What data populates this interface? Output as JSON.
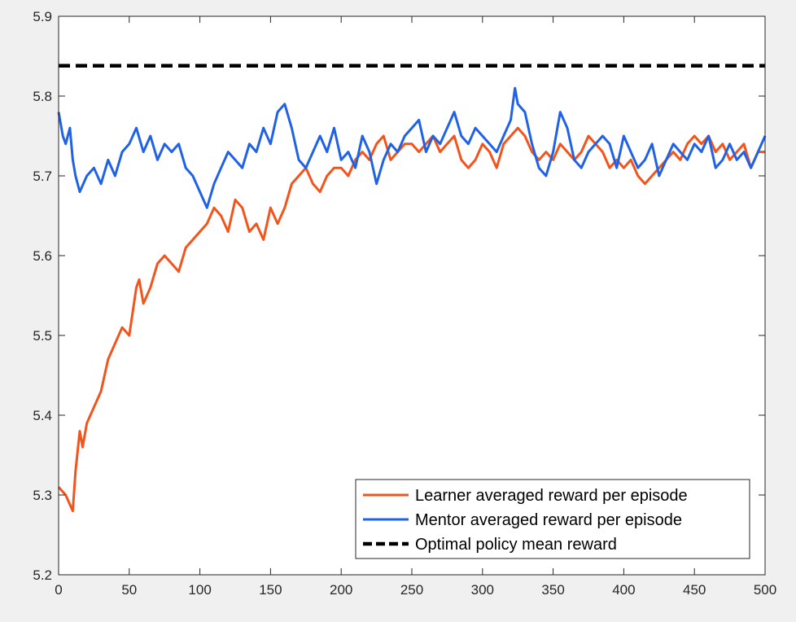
{
  "chart_data": {
    "type": "line",
    "title": "",
    "xlabel": "",
    "ylabel": "",
    "xlim": [
      0,
      500
    ],
    "ylim": [
      5.2,
      5.9
    ],
    "xticks": [
      0,
      50,
      100,
      150,
      200,
      250,
      300,
      350,
      400,
      450,
      500
    ],
    "xtick_labels": [
      "0",
      "50",
      "100",
      "150",
      "200",
      "250",
      "300",
      "350",
      "400",
      "450",
      "500"
    ],
    "yticks": [
      5.2,
      5.3,
      5.4,
      5.5,
      5.6,
      5.7,
      5.8,
      5.9
    ],
    "ytick_labels": [
      "5.2",
      "5.3",
      "5.4",
      "5.5",
      "5.6",
      "5.7",
      "5.8",
      "5.9"
    ],
    "grid": false,
    "legend_position": "bottom-right",
    "series": [
      {
        "name": "Learner averaged reward per episode",
        "color": "#f2541c",
        "dash": "solid",
        "x": [
          0,
          5,
          10,
          12,
          15,
          17,
          20,
          25,
          30,
          35,
          40,
          45,
          50,
          55,
          57,
          60,
          65,
          70,
          75,
          80,
          85,
          90,
          95,
          100,
          105,
          110,
          115,
          120,
          125,
          130,
          135,
          140,
          145,
          150,
          155,
          160,
          165,
          170,
          175,
          180,
          185,
          190,
          195,
          200,
          205,
          210,
          215,
          220,
          225,
          230,
          235,
          240,
          245,
          250,
          255,
          260,
          265,
          270,
          275,
          280,
          285,
          290,
          295,
          300,
          305,
          310,
          315,
          320,
          325,
          330,
          335,
          340,
          345,
          350,
          355,
          360,
          365,
          370,
          375,
          380,
          385,
          390,
          395,
          400,
          405,
          410,
          415,
          420,
          425,
          430,
          435,
          440,
          445,
          450,
          455,
          460,
          465,
          470,
          475,
          480,
          485,
          490,
          495,
          500
        ],
        "y": [
          5.31,
          5.3,
          5.28,
          5.33,
          5.38,
          5.36,
          5.39,
          5.41,
          5.43,
          5.47,
          5.49,
          5.51,
          5.5,
          5.56,
          5.57,
          5.54,
          5.56,
          5.59,
          5.6,
          5.59,
          5.58,
          5.61,
          5.62,
          5.63,
          5.64,
          5.66,
          5.65,
          5.63,
          5.67,
          5.66,
          5.63,
          5.64,
          5.62,
          5.66,
          5.64,
          5.66,
          5.69,
          5.7,
          5.71,
          5.69,
          5.68,
          5.7,
          5.71,
          5.71,
          5.7,
          5.72,
          5.73,
          5.72,
          5.74,
          5.75,
          5.72,
          5.73,
          5.74,
          5.74,
          5.73,
          5.74,
          5.75,
          5.73,
          5.74,
          5.75,
          5.72,
          5.71,
          5.72,
          5.74,
          5.73,
          5.71,
          5.74,
          5.75,
          5.76,
          5.75,
          5.73,
          5.72,
          5.73,
          5.72,
          5.74,
          5.73,
          5.72,
          5.73,
          5.75,
          5.74,
          5.73,
          5.71,
          5.72,
          5.71,
          5.72,
          5.7,
          5.69,
          5.7,
          5.71,
          5.72,
          5.73,
          5.72,
          5.74,
          5.75,
          5.74,
          5.75,
          5.73,
          5.74,
          5.72,
          5.73,
          5.74,
          5.71,
          5.73,
          5.73
        ]
      },
      {
        "name": "Mentor averaged reward per episode",
        "color": "#1f62e6",
        "dash": "solid",
        "x": [
          0,
          3,
          5,
          8,
          10,
          12,
          15,
          20,
          25,
          30,
          35,
          40,
          45,
          50,
          55,
          60,
          65,
          70,
          75,
          80,
          85,
          90,
          95,
          100,
          105,
          110,
          115,
          120,
          125,
          130,
          135,
          140,
          145,
          150,
          155,
          160,
          165,
          170,
          175,
          180,
          185,
          190,
          195,
          200,
          205,
          210,
          215,
          220,
          225,
          230,
          235,
          240,
          245,
          250,
          255,
          260,
          265,
          270,
          275,
          280,
          285,
          290,
          295,
          300,
          305,
          310,
          315,
          320,
          323,
          325,
          330,
          335,
          340,
          345,
          350,
          355,
          360,
          365,
          370,
          375,
          380,
          385,
          390,
          395,
          400,
          405,
          410,
          415,
          420,
          425,
          430,
          435,
          440,
          445,
          450,
          455,
          460,
          465,
          470,
          475,
          480,
          485,
          490,
          495,
          500
        ],
        "y": [
          5.78,
          5.75,
          5.74,
          5.76,
          5.72,
          5.7,
          5.68,
          5.7,
          5.71,
          5.69,
          5.72,
          5.7,
          5.73,
          5.74,
          5.76,
          5.73,
          5.75,
          5.72,
          5.74,
          5.73,
          5.74,
          5.71,
          5.7,
          5.68,
          5.66,
          5.69,
          5.71,
          5.73,
          5.72,
          5.71,
          5.74,
          5.73,
          5.76,
          5.74,
          5.78,
          5.79,
          5.76,
          5.72,
          5.71,
          5.73,
          5.75,
          5.73,
          5.76,
          5.72,
          5.73,
          5.71,
          5.75,
          5.73,
          5.69,
          5.72,
          5.74,
          5.73,
          5.75,
          5.76,
          5.77,
          5.73,
          5.75,
          5.74,
          5.76,
          5.78,
          5.75,
          5.74,
          5.76,
          5.75,
          5.74,
          5.73,
          5.75,
          5.77,
          5.81,
          5.79,
          5.78,
          5.74,
          5.71,
          5.7,
          5.73,
          5.78,
          5.76,
          5.72,
          5.71,
          5.73,
          5.74,
          5.75,
          5.74,
          5.71,
          5.75,
          5.73,
          5.71,
          5.72,
          5.74,
          5.7,
          5.72,
          5.74,
          5.73,
          5.72,
          5.74,
          5.73,
          5.75,
          5.71,
          5.72,
          5.74,
          5.72,
          5.73,
          5.71,
          5.73,
          5.75
        ]
      },
      {
        "name": "Optimal policy mean reward",
        "color": "#000000",
        "dash": "dashed",
        "x": [
          0,
          500
        ],
        "y": [
          5.838,
          5.838
        ]
      }
    ]
  }
}
